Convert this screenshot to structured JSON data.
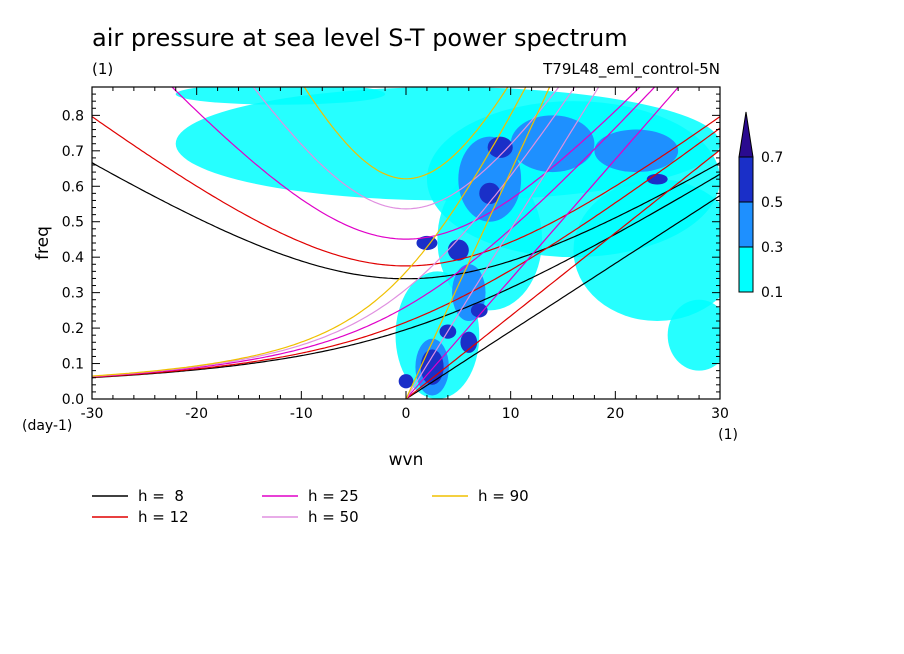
{
  "chart_data": {
    "type": "heatmap",
    "title": "air pressure at sea level S-T power spectrum",
    "subtitle_left": "(1)",
    "subtitle_right": "T79L48_eml_control-5N",
    "xlabel": "wvn",
    "ylabel": "freq",
    "x_unit": "(1)",
    "y_unit": "(day-1)",
    "xlim": [
      -30,
      30
    ],
    "ylim": [
      0,
      0.88
    ],
    "xticks": [
      -30,
      -20,
      -10,
      0,
      10,
      20,
      30
    ],
    "xtick_labels": [
      "-30",
      "-20",
      "-10",
      "0",
      "10",
      "20",
      "30"
    ],
    "yticks": [
      0,
      0.1,
      0.2,
      0.3,
      0.4,
      0.5,
      0.6,
      0.7,
      0.8
    ],
    "ytick_labels": [
      "0.0",
      "0.1",
      "0.2",
      "0.3",
      "0.4",
      "0.5",
      "0.6",
      "0.7",
      "0.8"
    ],
    "colorbar": {
      "levels": [
        0.1,
        0.3,
        0.5,
        0.7
      ],
      "labels": [
        "0.1",
        "0.3",
        "0.5",
        "0.7"
      ],
      "colors": [
        "#00ffff",
        "#1e90ff",
        "#1a2fc8",
        "#2a0a8f"
      ]
    },
    "power_regions": [
      {
        "level": 0,
        "wvn": 4,
        "freq": 0.72,
        "rx": 26,
        "ry": 0.16
      },
      {
        "level": 0,
        "wvn": 16,
        "freq": 0.62,
        "rx": 14,
        "ry": 0.22
      },
      {
        "level": 0,
        "wvn": 24,
        "freq": 0.42,
        "rx": 8,
        "ry": 0.2
      },
      {
        "level": 0,
        "wvn": 8,
        "freq": 0.45,
        "rx": 5,
        "ry": 0.2
      },
      {
        "level": 0,
        "wvn": 3,
        "freq": 0.18,
        "rx": 4,
        "ry": 0.18
      },
      {
        "level": 0,
        "wvn": -12,
        "freq": 0.86,
        "rx": 10,
        "ry": 0.03
      },
      {
        "level": 0,
        "wvn": 28,
        "freq": 0.18,
        "rx": 3,
        "ry": 0.1
      },
      {
        "level": 1,
        "wvn": 2.5,
        "freq": 0.09,
        "rx": 1.6,
        "ry": 0.08
      },
      {
        "level": 1,
        "wvn": 6,
        "freq": 0.3,
        "rx": 1.6,
        "ry": 0.08
      },
      {
        "level": 1,
        "wvn": 8,
        "freq": 0.62,
        "rx": 3,
        "ry": 0.12
      },
      {
        "level": 1,
        "wvn": 14,
        "freq": 0.72,
        "rx": 4,
        "ry": 0.08
      },
      {
        "level": 1,
        "wvn": 22,
        "freq": 0.7,
        "rx": 4,
        "ry": 0.06
      },
      {
        "level": 2,
        "wvn": 2.5,
        "freq": 0.09,
        "rx": 1.1,
        "ry": 0.05
      },
      {
        "level": 2,
        "wvn": 6,
        "freq": 0.16,
        "rx": 0.8,
        "ry": 0.03
      },
      {
        "level": 2,
        "wvn": 4,
        "freq": 0.19,
        "rx": 0.8,
        "ry": 0.02
      },
      {
        "level": 2,
        "wvn": 7,
        "freq": 0.25,
        "rx": 0.8,
        "ry": 0.02
      },
      {
        "level": 2,
        "wvn": 5,
        "freq": 0.42,
        "rx": 1,
        "ry": 0.03
      },
      {
        "level": 2,
        "wvn": 8,
        "freq": 0.58,
        "rx": 1,
        "ry": 0.03
      },
      {
        "level": 2,
        "wvn": 9,
        "freq": 0.71,
        "rx": 1.2,
        "ry": 0.03
      },
      {
        "level": 2,
        "wvn": 0,
        "freq": 0.05,
        "rx": 0.7,
        "ry": 0.02
      },
      {
        "level": 2,
        "wvn": 2,
        "freq": 0.44,
        "rx": 1,
        "ry": 0.02
      },
      {
        "level": 2,
        "wvn": 24,
        "freq": 0.62,
        "rx": 1,
        "ry": 0.015
      }
    ],
    "series": [
      {
        "name": "h =  8",
        "h": 8,
        "color": "#000000",
        "width": 1.2,
        "legend_label": "h =  8"
      },
      {
        "name": "h = 12",
        "h": 12,
        "color": "#e00000",
        "width": 1.2,
        "legend_label": "h = 12"
      },
      {
        "name": "h = 25",
        "h": 25,
        "color": "#e000c8",
        "width": 1.2,
        "legend_label": "h = 25"
      },
      {
        "name": "h = 50",
        "h": 50,
        "color": "#e090e0",
        "width": 1.2,
        "legend_label": "h = 50"
      },
      {
        "name": "h = 90",
        "h": 90,
        "color": "#f0c000",
        "width": 1.2,
        "legend_label": "h = 90"
      }
    ]
  }
}
